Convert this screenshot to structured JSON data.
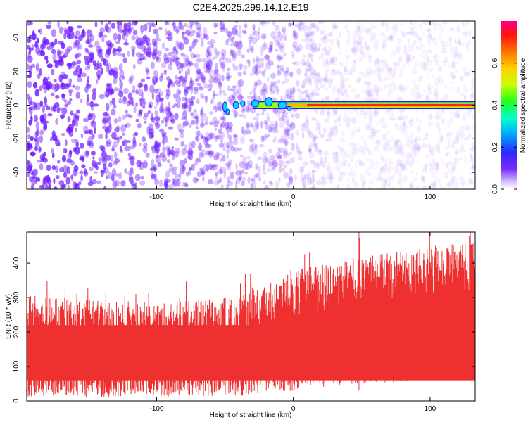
{
  "title": "C2E4.2025.299.14.12.E19",
  "colors": {
    "scatter": "#6f1aff",
    "snr": "#ee3030",
    "axis": "#000000"
  },
  "chart_data": [
    {
      "type": "heatmap",
      "title": "",
      "xlabel": "Height of straight line (km)",
      "ylabel": "Frequency (Hz)",
      "xlim": [
        -195,
        133
      ],
      "ylim": [
        -50,
        50
      ],
      "xticks": [
        -100,
        0,
        100
      ],
      "xtick_labels": [
        "-100",
        "0",
        "100"
      ],
      "yticks": [
        -40,
        -20,
        0,
        20,
        40
      ],
      "ytick_labels": [
        "-40",
        "-20",
        "0",
        "20",
        "40"
      ],
      "signal_line": {
        "frequency_hz": 0,
        "x_start": -50,
        "x_end": 133
      },
      "colorbar": {
        "label": "Normalized spectral amplitude",
        "range": [
          0,
          0.8
        ],
        "ticks": [
          0.0,
          0.2,
          0.4,
          0.6
        ],
        "tick_labels": [
          "0.0",
          "0.2",
          "0.4",
          "0.6"
        ]
      }
    },
    {
      "type": "line",
      "title": "",
      "xlabel": "Height of straight line (km)",
      "ylabel": "SNR (10 * v/v)",
      "xlim": [
        -195,
        133
      ],
      "ylim": [
        0,
        490
      ],
      "xticks": [
        -100,
        0,
        100
      ],
      "xtick_labels": [
        "-100",
        "0",
        "100"
      ],
      "yticks": [
        0,
        100,
        200,
        300,
        400
      ],
      "ytick_labels": [
        "0",
        "100",
        "200",
        "300",
        "400"
      ],
      "envelope": {
        "x": [
          -195,
          -150,
          -100,
          -50,
          -40,
          0,
          50,
          100,
          133
        ],
        "low": [
          10,
          10,
          12,
          15,
          15,
          30,
          50,
          60,
          70
        ],
        "high": [
          310,
          295,
          285,
          300,
          300,
          380,
          420,
          450,
          460
        ]
      }
    }
  ]
}
